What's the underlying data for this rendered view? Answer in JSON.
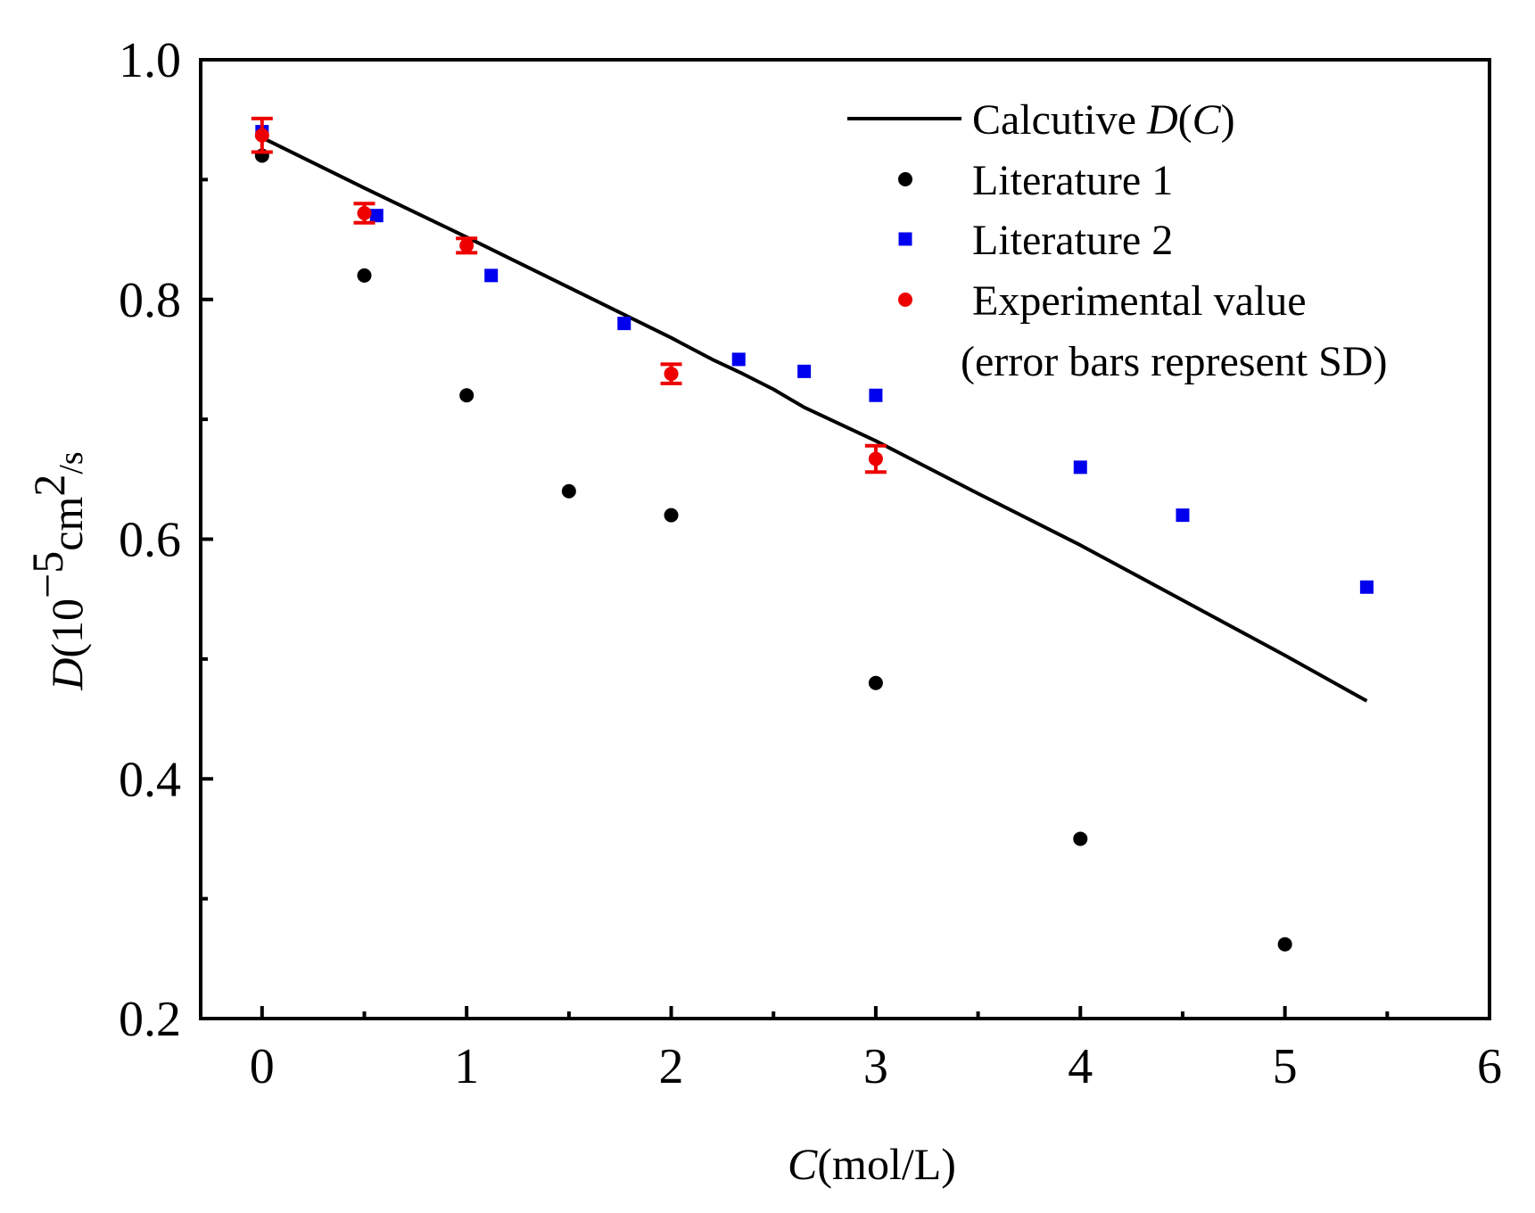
{
  "chart_data": {
    "type": "scatter",
    "xlabel": {
      "italic": "C",
      "rest": "(mol/L)"
    },
    "ylabel": {
      "italic": "D",
      "open": "(10",
      "exp": "−5",
      "mid": "cm",
      "exp2": "2",
      "close": "/s"
    },
    "xlim": [
      -0.3,
      6
    ],
    "ylim": [
      0.2,
      1.0
    ],
    "x_ticks": [
      0,
      1,
      2,
      3,
      4,
      5,
      6
    ],
    "x_tick_labels": [
      "0",
      "1",
      "2",
      "3",
      "4",
      "5",
      "6"
    ],
    "x_minor_ticks": [
      0.5,
      1.5,
      2.5,
      3.5,
      4.5,
      5.5
    ],
    "y_ticks": [
      0.2,
      0.4,
      0.6,
      0.8,
      1.0
    ],
    "y_tick_labels": [
      "0.2",
      "0.4",
      "0.6",
      "0.8",
      "1.0"
    ],
    "y_minor_ticks": [
      0.3,
      0.5,
      0.7,
      0.9
    ],
    "grid": false,
    "legend_position": "top-right",
    "series": [
      {
        "name": "Calcutive D(C)",
        "legend_prefix": "Calcutive ",
        "legend_italic": "D",
        "legend_mid": "(",
        "legend_italic2": "C",
        "legend_suffix": ")",
        "kind": "line",
        "color": "#000000",
        "x": [
          0,
          0.5,
          1,
          1.5,
          2,
          2.2,
          2.35,
          2.5,
          2.65,
          3,
          3.5,
          4,
          4.5,
          5,
          5.4
        ],
        "y": [
          0.935,
          0.893,
          0.852,
          0.81,
          0.768,
          0.75,
          0.738,
          0.725,
          0.71,
          0.682,
          0.638,
          0.595,
          0.549,
          0.503,
          0.465
        ]
      },
      {
        "name": "Literature 1",
        "kind": "points",
        "marker": "circle",
        "color": "#000000",
        "x": [
          0,
          0.5,
          1,
          1.5,
          2,
          3,
          4,
          5
        ],
        "y": [
          0.92,
          0.82,
          0.72,
          0.64,
          0.62,
          0.48,
          0.35,
          0.262
        ]
      },
      {
        "name": "Literature 2",
        "kind": "points",
        "marker": "square",
        "color": "#0000ee",
        "x": [
          0,
          0.56,
          1.12,
          1.77,
          2.33,
          2.65,
          3,
          4,
          4.5,
          5.4
        ],
        "y": [
          0.94,
          0.87,
          0.82,
          0.78,
          0.75,
          0.74,
          0.72,
          0.66,
          0.62,
          0.56
        ]
      },
      {
        "name": "Experimental value",
        "note": "(error bars represent SD)",
        "kind": "points",
        "marker": "circle",
        "color": "#ee0000",
        "x": [
          0,
          0.5,
          1,
          2,
          3
        ],
        "y": [
          0.937,
          0.872,
          0.845,
          0.738,
          0.667
        ],
        "err": [
          0.014,
          0.008,
          0.006,
          0.008,
          0.011
        ]
      }
    ]
  }
}
